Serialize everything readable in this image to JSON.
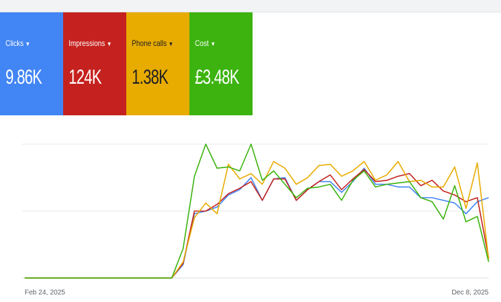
{
  "metrics": [
    {
      "label": "Clicks",
      "value": "9.86K",
      "color": "#4285f4"
    },
    {
      "label": "Impressions",
      "value": "124K",
      "color": "#c5221f"
    },
    {
      "label": "Phone calls",
      "value": "1.38K",
      "color": "#e8ab00"
    },
    {
      "label": "Cost",
      "value": "£3.48K",
      "color": "#3cb30f"
    }
  ],
  "dropdown_icon": "caret-down-icon",
  "chart_data": {
    "type": "line",
    "x_start_label": "Feb 24, 2025",
    "x_end_label": "Dec 8, 2025",
    "ylim": [
      0,
      100
    ],
    "grid": true,
    "legend": "none",
    "series": [
      {
        "color": "#4285f4",
        "values": [
          0,
          0,
          0,
          0,
          0,
          0,
          0,
          0,
          0,
          0,
          0,
          0,
          0,
          0,
          10,
          48,
          50,
          53,
          62,
          66,
          75,
          58,
          74,
          75,
          58,
          66,
          72,
          72,
          64,
          72,
          82,
          70,
          70,
          68,
          68,
          60,
          60,
          58,
          56,
          48,
          57,
          60
        ]
      },
      {
        "color": "#c5221f",
        "values": [
          0,
          0,
          0,
          0,
          0,
          0,
          0,
          0,
          0,
          0,
          0,
          0,
          0,
          0,
          11,
          50,
          50,
          55,
          63,
          67,
          72,
          58,
          74,
          74,
          58,
          66,
          72,
          77,
          66,
          74,
          81,
          72,
          73,
          76,
          78,
          69,
          73,
          65,
          62,
          57,
          60,
          15
        ]
      },
      {
        "color": "#e8ab00",
        "values": [
          0,
          0,
          0,
          0,
          0,
          0,
          0,
          0,
          0,
          0,
          0,
          0,
          0,
          0,
          12,
          45,
          56,
          48,
          85,
          74,
          78,
          70,
          87,
          82,
          70,
          75,
          84,
          85,
          76,
          80,
          87,
          73,
          77,
          87,
          72,
          73,
          68,
          68,
          83,
          52,
          86,
          14
        ]
      },
      {
        "color": "#3cb30f",
        "values": [
          0,
          0,
          0,
          0,
          0,
          0,
          0,
          0,
          0,
          0,
          0,
          0,
          0,
          0,
          22,
          76,
          100,
          82,
          83,
          80,
          100,
          73,
          80,
          70,
          60,
          67,
          68,
          70,
          58,
          73,
          80,
          68,
          70,
          71,
          72,
          60,
          57,
          44,
          69,
          42,
          46,
          12
        ]
      }
    ]
  }
}
